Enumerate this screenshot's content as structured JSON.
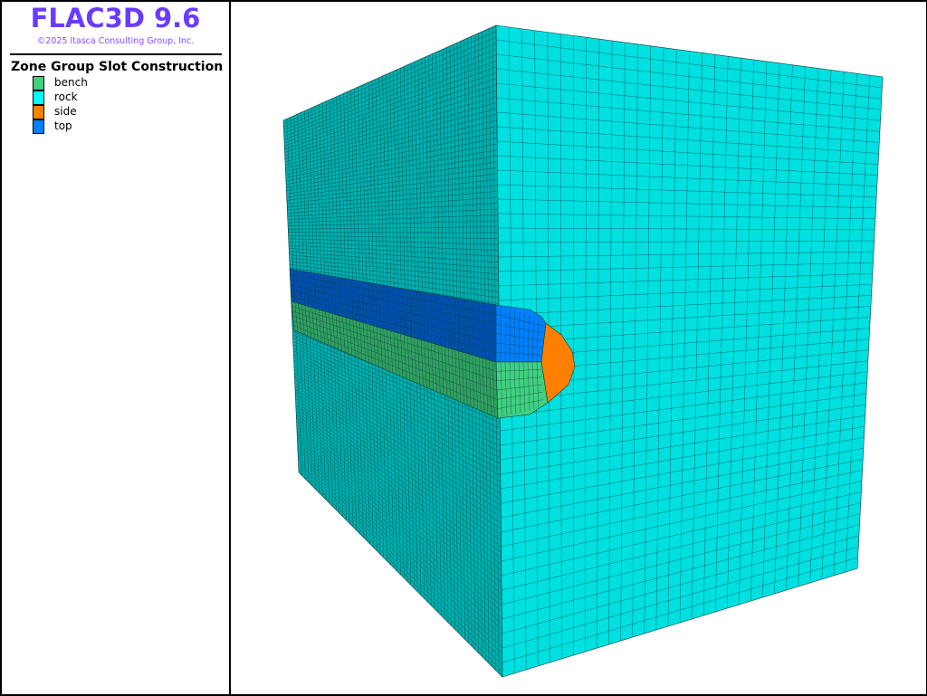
{
  "app": {
    "title": "FLAC3D 9.6",
    "copyright": "©2025 Itasca Consulting Group, Inc."
  },
  "legend": {
    "title": "Zone Group Slot Construction",
    "items": [
      {
        "label": "bench",
        "color": "#40d080"
      },
      {
        "label": "rock",
        "color": "#00ffff"
      },
      {
        "label": "side",
        "color": "#ff8000"
      },
      {
        "label": "top",
        "color": "#0080ff"
      }
    ]
  },
  "model": {
    "rock_face_color": "#00e0e0",
    "rock_cut_color": "#00b0b0",
    "mesh_line_color": "#0a3a3a"
  }
}
